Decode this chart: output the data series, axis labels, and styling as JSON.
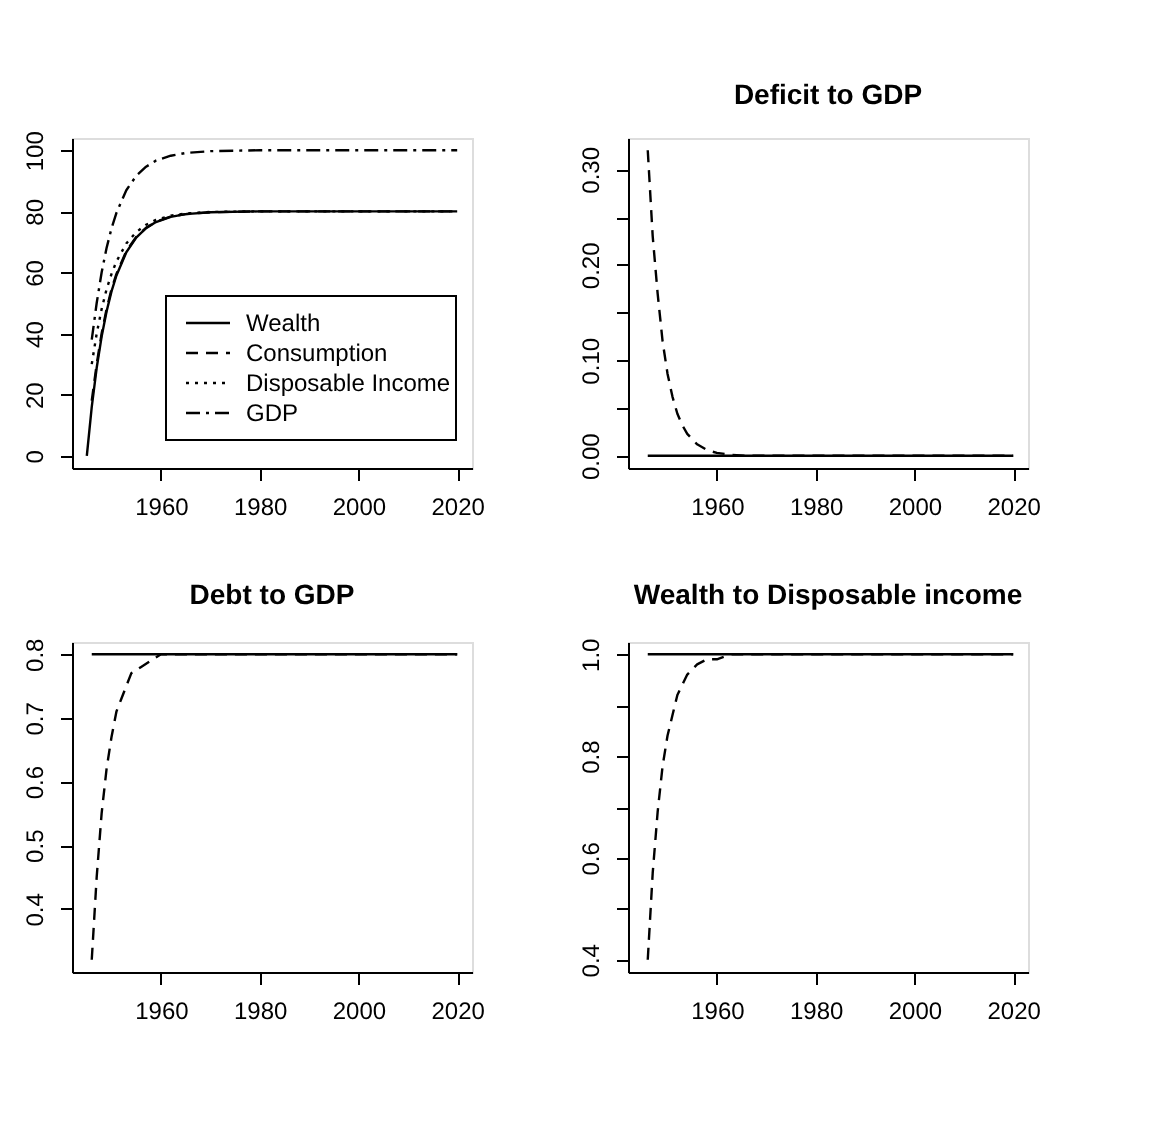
{
  "chart_data": [
    {
      "type": "line",
      "legend": "bottom right",
      "xlim": [
        1942,
        2023
      ],
      "ylim": [
        -4,
        104
      ],
      "xticks": [
        1960,
        1980,
        2000,
        2020
      ],
      "yticks": [
        0,
        20,
        40,
        60,
        80,
        100
      ],
      "series": [
        {
          "name": "Wealth",
          "color": "#000000",
          "line_style": "solid",
          "x": [
            1945,
            1946,
            1947,
            1948,
            1949,
            1950,
            1951,
            1953,
            1955,
            1957,
            1959,
            1962,
            1965,
            1970,
            1980,
            2000,
            2020
          ],
          "values": [
            0,
            16,
            28.8,
            39,
            47.2,
            53.8,
            59,
            66.6,
            71.4,
            74.5,
            76.5,
            78.2,
            79.1,
            79.7,
            80,
            80,
            80
          ]
        },
        {
          "name": "Consumption",
          "color": "#000000",
          "line_style": "dashed",
          "x": [
            1946,
            1947,
            1948,
            1949,
            1950,
            1951,
            1953,
            1955,
            1957,
            1959,
            1962,
            1965,
            1970,
            1980,
            2000,
            2020
          ],
          "values": [
            18,
            30,
            40,
            48,
            54.5,
            59.5,
            67,
            71.6,
            74.6,
            76.6,
            78.3,
            79.1,
            79.7,
            80,
            80,
            80
          ]
        },
        {
          "name": "Disposable Income",
          "color": "#000000",
          "line_style": "dotted",
          "x": [
            1946,
            1947,
            1948,
            1949,
            1950,
            1951,
            1953,
            1955,
            1957,
            1959,
            1962,
            1965,
            1970,
            1980,
            2000,
            2020
          ],
          "values": [
            30,
            40,
            48,
            54.5,
            59.5,
            63.6,
            69.5,
            73.2,
            75.6,
            77.2,
            78.6,
            79.3,
            79.8,
            80,
            80,
            80
          ]
        },
        {
          "name": "GDP",
          "color": "#000000",
          "line_style": "dashdot",
          "x": [
            1946,
            1947,
            1948,
            1949,
            1950,
            1951,
            1953,
            1955,
            1957,
            1959,
            1962,
            1965,
            1970,
            1980,
            2000,
            2020
          ],
          "values": [
            38,
            50,
            60,
            68,
            74.4,
            79.5,
            86.9,
            91.6,
            94.6,
            96.6,
            98.2,
            99.1,
            99.7,
            100,
            100,
            100
          ]
        }
      ]
    },
    {
      "type": "line",
      "title": "Deficit to GDP",
      "xlim": [
        1942,
        2023
      ],
      "ylim": [
        -0.0128,
        0.3328
      ],
      "xticks": [
        1960,
        1980,
        2000,
        2020
      ],
      "yticks": [
        {
          "value": 0,
          "label": "0.00"
        },
        {
          "value": 0.05,
          "label": null
        },
        {
          "value": 0.1,
          "label": "0.10"
        },
        {
          "value": 0.15,
          "label": null
        },
        {
          "value": 0.2,
          "label": "0.20"
        },
        {
          "value": 0.25,
          "label": null
        },
        {
          "value": 0.3,
          "label": "0.30"
        }
      ],
      "series": [
        {
          "color": "#000000",
          "line_style": "solid",
          "x": [
            1946,
            2020
          ],
          "values": [
            0,
            0
          ]
        },
        {
          "color": "#000000",
          "line_style": "dashed",
          "x": [
            1946,
            1947,
            1948,
            1949,
            1950,
            1951,
            1952,
            1953,
            1954,
            1956,
            1958,
            1960,
            1963,
            1966,
            1970,
            1980,
            2000,
            2020
          ],
          "values": [
            0.32,
            0.23,
            0.17,
            0.12,
            0.086,
            0.062,
            0.044,
            0.032,
            0.023,
            0.012,
            0.006,
            0.003,
            0.001,
            0,
            0,
            0,
            0,
            0
          ]
        }
      ]
    },
    {
      "type": "line",
      "title": "Debt to GDP",
      "xlim": [
        1942,
        2023
      ],
      "ylim": [
        0.3008,
        0.8192
      ],
      "xticks": [
        1960,
        1980,
        2000,
        2020
      ],
      "yticks": [
        0.4,
        0.5,
        0.6,
        0.7,
        0.8
      ],
      "series": [
        {
          "color": "#000000",
          "line_style": "solid",
          "x": [
            1946,
            2020
          ],
          "values": [
            0.8,
            0.8
          ]
        },
        {
          "color": "#000000",
          "line_style": "dashed",
          "x": [
            1946,
            1947,
            1948,
            1949,
            1950,
            1951,
            1952,
            1953,
            1954,
            1956,
            1958,
            1960,
            1963,
            1966,
            1970,
            1980,
            2000,
            2020
          ],
          "values": [
            0.32,
            0.45,
            0.55,
            0.62,
            0.67,
            0.71,
            0.73,
            0.75,
            0.77,
            0.78,
            0.79,
            0.8,
            0.8,
            0.8,
            0.8,
            0.8,
            0.8,
            0.8
          ]
        }
      ]
    },
    {
      "type": "line",
      "title": "Wealth to Disposable income",
      "xlim": [
        1942,
        2023
      ],
      "ylim": [
        0.376,
        1.024
      ],
      "xticks": [
        1960,
        1980,
        2000,
        2020
      ],
      "yticks": [
        0.4,
        {
          "value": 0.5,
          "label": null
        },
        0.6,
        {
          "value": 0.7,
          "label": null
        },
        0.8,
        {
          "value": 0.9,
          "label": null
        },
        {
          "value": 1.0,
          "label": "1.0"
        }
      ],
      "series": [
        {
          "color": "#000000",
          "line_style": "solid",
          "x": [
            1946,
            2020
          ],
          "values": [
            1,
            1
          ]
        },
        {
          "color": "#000000",
          "line_style": "dashed",
          "x": [
            1946,
            1947,
            1948,
            1949,
            1950,
            1951,
            1952,
            1953,
            1954,
            1956,
            1958,
            1960,
            1963,
            1966,
            1970,
            1980,
            2000,
            2020
          ],
          "values": [
            0.4,
            0.57,
            0.69,
            0.78,
            0.84,
            0.88,
            0.92,
            0.94,
            0.96,
            0.98,
            0.99,
            0.99,
            1,
            1,
            1,
            1,
            1,
            1
          ]
        }
      ]
    }
  ]
}
